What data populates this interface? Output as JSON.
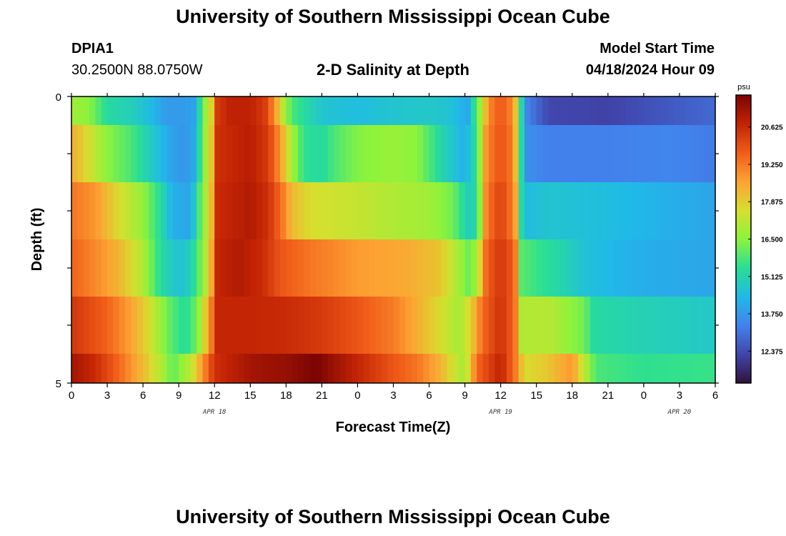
{
  "page": {
    "title_top": "University of Southern Mississippi Ocean Cube",
    "title_bottom": "University of Southern Mississippi Ocean Cube",
    "station": "DPIA1",
    "coords": "30.2500N  88.0750W",
    "plot_title": "2-D Salinity at Depth",
    "model_start_label": "Model Start Time",
    "model_start_time": "04/18/2024 Hour 09"
  },
  "chart_data": {
    "type": "heatmap",
    "title": "2-D Salinity at Depth",
    "xlabel": "Forecast Time(Z)",
    "ylabel": "Depth (ft)",
    "colorbar_unit": "psu",
    "colorbar_ticks": [
      "20.625",
      "19.250",
      "17.875",
      "16.500",
      "15.125",
      "13.750",
      "12.375"
    ],
    "colorbar_values": [
      20.625,
      19.25,
      17.875,
      16.5,
      15.125,
      13.75,
      12.375
    ],
    "vmin": 11.2,
    "vmax": 21.8,
    "x_tick_labels": [
      "0",
      "3",
      "6",
      "9",
      "12",
      "15",
      "18",
      "21",
      "0",
      "3",
      "6",
      "9",
      "12",
      "15",
      "18",
      "21",
      "0",
      "3",
      "6"
    ],
    "x_range_hours": [
      0,
      54
    ],
    "date_labels": [
      {
        "text": "APR 18",
        "hour": 12
      },
      {
        "text": "APR 19",
        "hour": 36
      },
      {
        "text": "APR 20",
        "hour": 51
      }
    ],
    "y_tick_labels": [
      "0",
      "5"
    ],
    "y_range": [
      0,
      5
    ],
    "rows": [
      {
        "depth": "0-0.5",
        "keys": [
          [
            0,
            16.8
          ],
          [
            1.5,
            16.5
          ],
          [
            3,
            15.3
          ],
          [
            5,
            15.0
          ],
          [
            6.5,
            14.5
          ],
          [
            8,
            13.8
          ],
          [
            9.5,
            13.8
          ],
          [
            10.5,
            14.0
          ],
          [
            11,
            16.5
          ],
          [
            11.6,
            17.0
          ],
          [
            12.2,
            20.3
          ],
          [
            13.3,
            20.8
          ],
          [
            15,
            20.8
          ],
          [
            16.2,
            20.3
          ],
          [
            17,
            19.0
          ],
          [
            17.8,
            17.0
          ],
          [
            18.5,
            15.8
          ],
          [
            21,
            14.7
          ],
          [
            24,
            14.5
          ],
          [
            27,
            14.7
          ],
          [
            30,
            14.8
          ],
          [
            32,
            14.6
          ],
          [
            33.2,
            14.0
          ],
          [
            34.2,
            16.5
          ],
          [
            35,
            19.0
          ],
          [
            36,
            19.8
          ],
          [
            37,
            19.0
          ],
          [
            37.4,
            17.5
          ],
          [
            38,
            13.5
          ],
          [
            40,
            12.3
          ],
          [
            45,
            12.2
          ],
          [
            50,
            12.6
          ],
          [
            54,
            12.9
          ]
        ]
      },
      {
        "depth": "0.5-1.5",
        "keys": [
          [
            0,
            18.5
          ],
          [
            3,
            16.5
          ],
          [
            5,
            15.8
          ],
          [
            7,
            14.7
          ],
          [
            8.5,
            13.9
          ],
          [
            9.5,
            13.7
          ],
          [
            10.5,
            14.2
          ],
          [
            11,
            16.6
          ],
          [
            11.6,
            17.2
          ],
          [
            12.2,
            20.5
          ],
          [
            15,
            20.9
          ],
          [
            16.5,
            20.3
          ],
          [
            17.5,
            18.8
          ],
          [
            18.5,
            16.8
          ],
          [
            19.5,
            15.5
          ],
          [
            21,
            15.3
          ],
          [
            22,
            15.8
          ],
          [
            24,
            16.4
          ],
          [
            27,
            16.7
          ],
          [
            29,
            16.5
          ],
          [
            31,
            15.2
          ],
          [
            33,
            14.2
          ],
          [
            34,
            15.5
          ],
          [
            34.8,
            19.0
          ],
          [
            36,
            19.9
          ],
          [
            37,
            19.2
          ],
          [
            37.4,
            17.5
          ],
          [
            38,
            13.6
          ],
          [
            40,
            13.3
          ],
          [
            45,
            13.3
          ],
          [
            50,
            13.4
          ],
          [
            54,
            13.2
          ]
        ]
      },
      {
        "depth": "1.5-2.5",
        "keys": [
          [
            0,
            19.3
          ],
          [
            2,
            18.8
          ],
          [
            4,
            17.6
          ],
          [
            6,
            16.6
          ],
          [
            7.5,
            15.3
          ],
          [
            8.5,
            14.2
          ],
          [
            10,
            14.0
          ],
          [
            11,
            16.5
          ],
          [
            11.6,
            17.5
          ],
          [
            12.2,
            20.6
          ],
          [
            15,
            21.0
          ],
          [
            16.5,
            20.5
          ],
          [
            17.5,
            19.5
          ],
          [
            18.5,
            18.2
          ],
          [
            20,
            17.6
          ],
          [
            24,
            17.3
          ],
          [
            27,
            17.0
          ],
          [
            30,
            16.8
          ],
          [
            32,
            16.2
          ],
          [
            33.2,
            15.0
          ],
          [
            34,
            15.2
          ],
          [
            34.8,
            19.2
          ],
          [
            36,
            20.2
          ],
          [
            37.2,
            19.0
          ],
          [
            37.6,
            15.5
          ],
          [
            38.2,
            14.5
          ],
          [
            40,
            14.7
          ],
          [
            45,
            14.5
          ],
          [
            50,
            14.2
          ],
          [
            54,
            14.0
          ]
        ]
      },
      {
        "depth": "2.5-3.5",
        "keys": [
          [
            0,
            19.6
          ],
          [
            2,
            19.0
          ],
          [
            4,
            18.3
          ],
          [
            6,
            17.0
          ],
          [
            7.5,
            15.3
          ],
          [
            9,
            14.6
          ],
          [
            10,
            15.0
          ],
          [
            11,
            16.5
          ],
          [
            11.6,
            17.8
          ],
          [
            12.2,
            20.7
          ],
          [
            14,
            21.0
          ],
          [
            16,
            20.6
          ],
          [
            17.5,
            19.8
          ],
          [
            20,
            19.3
          ],
          [
            24,
            18.7
          ],
          [
            28,
            18.5
          ],
          [
            31,
            18.0
          ],
          [
            32.5,
            16.8
          ],
          [
            33.5,
            16.0
          ],
          [
            34.2,
            17.5
          ],
          [
            34.8,
            19.6
          ],
          [
            36,
            20.4
          ],
          [
            37.2,
            19.6
          ],
          [
            37.6,
            16.0
          ],
          [
            39,
            15.6
          ],
          [
            41,
            15.2
          ],
          [
            43,
            14.6
          ],
          [
            47,
            14.2
          ],
          [
            54,
            14.0
          ]
        ]
      },
      {
        "depth": "3.5-4.5",
        "keys": [
          [
            0,
            20.4
          ],
          [
            3,
            19.6
          ],
          [
            5,
            18.6
          ],
          [
            6.5,
            17.6
          ],
          [
            8,
            16.2
          ],
          [
            9.5,
            15.3
          ],
          [
            10.5,
            16.2
          ],
          [
            11,
            17.3
          ],
          [
            11.6,
            18.8
          ],
          [
            12.2,
            20.7
          ],
          [
            15,
            20.7
          ],
          [
            18,
            20.6
          ],
          [
            21,
            20.3
          ],
          [
            24,
            19.8
          ],
          [
            27,
            19.2
          ],
          [
            29,
            18.4
          ],
          [
            31,
            17.6
          ],
          [
            32.5,
            16.8
          ],
          [
            33.5,
            17.8
          ],
          [
            34.5,
            19.5
          ],
          [
            36,
            20.5
          ],
          [
            37.2,
            19.5
          ],
          [
            37.6,
            17.0
          ],
          [
            40,
            17.1
          ],
          [
            43,
            16.2
          ],
          [
            43.8,
            15.3
          ],
          [
            47,
            15.1
          ],
          [
            54,
            14.8
          ]
        ]
      },
      {
        "depth": "4.5-5",
        "keys": [
          [
            0,
            21.2
          ],
          [
            2,
            20.6
          ],
          [
            4,
            19.5
          ],
          [
            6,
            18.2
          ],
          [
            7.8,
            16.8
          ],
          [
            8.5,
            16.0
          ],
          [
            10,
            17.2
          ],
          [
            11,
            18.8
          ],
          [
            12,
            20.5
          ],
          [
            15,
            21.2
          ],
          [
            18,
            21.4
          ],
          [
            20.5,
            21.8
          ],
          [
            24,
            20.7
          ],
          [
            27,
            19.8
          ],
          [
            29,
            19.3
          ],
          [
            31,
            18.3
          ],
          [
            32,
            17.5
          ],
          [
            33,
            16.8
          ],
          [
            34,
            19.5
          ],
          [
            36,
            20.8
          ],
          [
            37.2,
            19.3
          ],
          [
            38,
            17.6
          ],
          [
            40,
            18.0
          ],
          [
            42,
            18.8
          ],
          [
            43,
            17.2
          ],
          [
            44,
            15.8
          ],
          [
            48,
            15.5
          ],
          [
            54,
            15.6
          ]
        ]
      }
    ]
  }
}
